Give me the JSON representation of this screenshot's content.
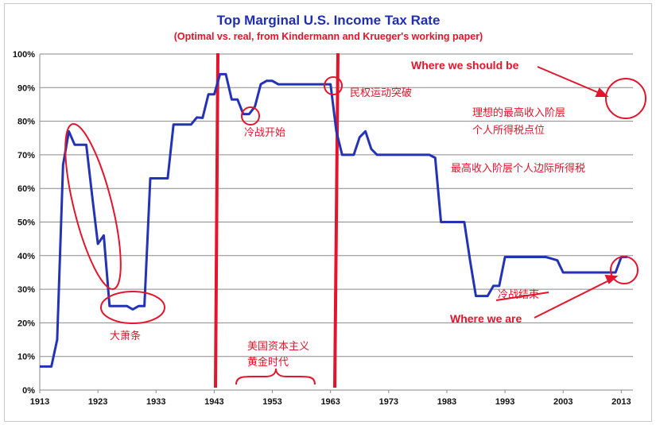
{
  "chart_data": {
    "type": "line",
    "title": "Top Marginal U.S. Income Tax Rate",
    "subtitle": "(Optimal vs. real, from Kindermann and Krueger's working paper)",
    "xlabel": "",
    "ylabel": "",
    "xlim": [
      1913,
      2015
    ],
    "ylim": [
      0,
      100
    ],
    "grid": true,
    "line_color": "#2433b5",
    "accent_color": "#e3142b",
    "x_ticks": [
      "1913",
      "1923",
      "1933",
      "1943",
      "1953",
      "1963",
      "1973",
      "1983",
      "1993",
      "2003",
      "2013"
    ],
    "y_ticks": [
      "0%",
      "10%",
      "20%",
      "30%",
      "40%",
      "50%",
      "60%",
      "70%",
      "80%",
      "90%",
      "100%"
    ],
    "series": [
      {
        "x": [
          1913,
          1915,
          1916,
          1917,
          1918,
          1919,
          1920,
          1921,
          1922,
          1923,
          1924,
          1925,
          1926,
          1927,
          1928,
          1929,
          1930,
          1931,
          1932,
          1933,
          1934,
          1935,
          1936,
          1937,
          1938,
          1939,
          1940,
          1941,
          1942,
          1943,
          1944,
          1945,
          1946,
          1947,
          1948,
          1949,
          1950,
          1951,
          1952,
          1953,
          1954,
          1955,
          1956,
          1957,
          1958,
          1959,
          1960,
          1961,
          1962,
          1963,
          1964,
          1965,
          1966,
          1967,
          1968,
          1969,
          1970,
          1971,
          1972,
          1973,
          1974,
          1975,
          1976,
          1977,
          1978,
          1979,
          1980,
          1981,
          1982,
          1983,
          1984,
          1985,
          1986,
          1987,
          1988,
          1989,
          1990,
          1991,
          1992,
          1993,
          1994,
          1995,
          1996,
          1997,
          1998,
          1999,
          2000,
          2001,
          2002,
          2003,
          2004,
          2005,
          2006,
          2007,
          2008,
          2009,
          2010,
          2011,
          2012,
          2013,
          2014
        ],
        "y": [
          7,
          7,
          15,
          67,
          77,
          73,
          73,
          73,
          58,
          43.5,
          46,
          25,
          25,
          25,
          25,
          24,
          25,
          25,
          63,
          63,
          63,
          63,
          79,
          79,
          79,
          79,
          81.1,
          81,
          88,
          88,
          94,
          94,
          86.45,
          86.45,
          82.13,
          82.13,
          84.36,
          91,
          92,
          92,
          91,
          91,
          91,
          91,
          91,
          91,
          91,
          91,
          91,
          91,
          77,
          70,
          70,
          70,
          75.25,
          77,
          71.75,
          70,
          70,
          70,
          70,
          70,
          70,
          70,
          70,
          70,
          70,
          69.13,
          50,
          50,
          50,
          50,
          50,
          38.5,
          28,
          28,
          28,
          31,
          31,
          39.6,
          39.6,
          39.6,
          39.6,
          39.6,
          39.6,
          39.6,
          39.6,
          39.1,
          38.6,
          35,
          35,
          35,
          35,
          35,
          35,
          35,
          35,
          35,
          35,
          39.6,
          39.6
        ]
      }
    ],
    "annotations": {
      "great_depression": "大萧条",
      "cold_war_start": "冷战开始",
      "civil_rights": "民权运动突破",
      "golden_age_line1": "美国资本主义",
      "golden_age_line2": "黄金时代",
      "ideal_line1": "理想的最高收入阶层",
      "ideal_line2": "个人所得税点位",
      "top_marginal": "最高收入阶层个人边际所得税",
      "cold_war_end": "冷战结束",
      "where_should_be": "Where we should be",
      "where_we_are": "Where we are"
    }
  }
}
